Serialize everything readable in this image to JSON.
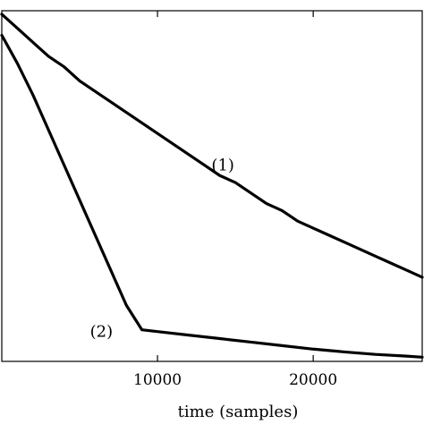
{
  "chart_data": {
    "type": "line",
    "xlabel": "time (samples)",
    "ylabel": "",
    "title": "",
    "xlim": [
      0,
      27000
    ],
    "ylim": [
      0,
      1
    ],
    "x_ticks": [
      10000,
      20000
    ],
    "grid": false,
    "series": [
      {
        "label": "(1)",
        "x": [
          0,
          1000,
          2000,
          3000,
          4000,
          5000,
          6000,
          7000,
          8000,
          9000,
          10000,
          11000,
          12000,
          13000,
          14000,
          15000,
          16000,
          17000,
          18000,
          19000,
          20000,
          21000,
          22000,
          23000,
          24000,
          25000,
          26000,
          27000
        ],
        "y": [
          0.99,
          0.95,
          0.91,
          0.87,
          0.84,
          0.8,
          0.77,
          0.74,
          0.71,
          0.68,
          0.65,
          0.62,
          0.59,
          0.56,
          0.53,
          0.51,
          0.48,
          0.45,
          0.43,
          0.4,
          0.38,
          0.36,
          0.34,
          0.32,
          0.3,
          0.28,
          0.26,
          0.24
        ]
      },
      {
        "label": "(2)",
        "x": [
          0,
          1000,
          2000,
          3000,
          4000,
          5000,
          6000,
          7000,
          8000,
          9000,
          10000,
          12000,
          14000,
          16000,
          18000,
          20000,
          22000,
          24000,
          26000,
          27000
        ],
        "y": [
          0.93,
          0.85,
          0.76,
          0.66,
          0.56,
          0.46,
          0.36,
          0.26,
          0.16,
          0.09,
          0.085,
          0.075,
          0.065,
          0.055,
          0.045,
          0.035,
          0.027,
          0.02,
          0.015,
          0.012
        ]
      }
    ],
    "annotations": [
      {
        "text": "(1)",
        "x": 14200,
        "y": 0.545
      },
      {
        "text": "(2)",
        "x": 6400,
        "y": 0.07
      }
    ]
  }
}
